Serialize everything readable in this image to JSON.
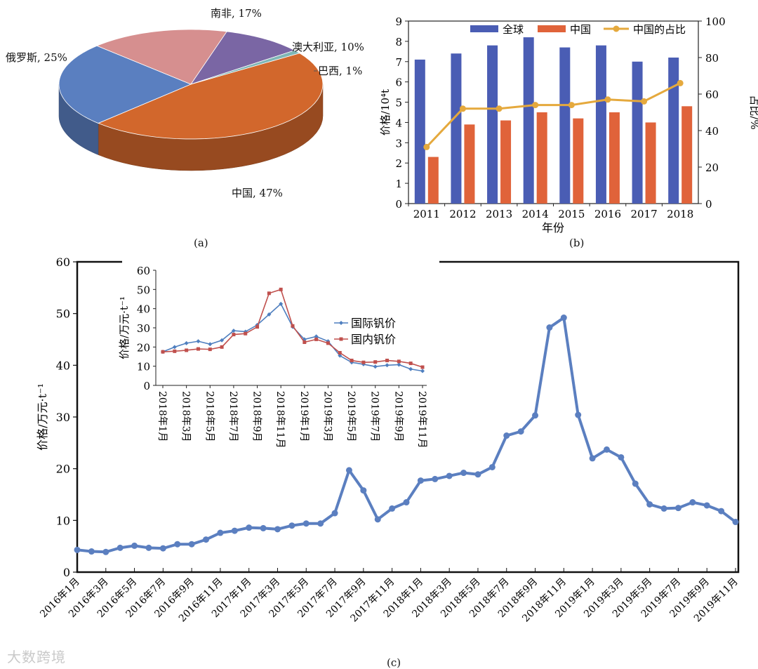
{
  "captions": {
    "a": "(a)",
    "b": "(b)",
    "c": "(c)"
  },
  "watermark": "大数跨境",
  "chart_data": [
    {
      "type": "pie",
      "labels": [
        "中国",
        "俄罗斯",
        "南非",
        "澳大利亚",
        "巴西"
      ],
      "values": [
        47,
        25,
        17,
        10,
        1
      ],
      "slice_labels": [
        "中国, 47%",
        "俄罗斯, 25%",
        "南非, 17%",
        "澳大利亚, 10%",
        "巴西, 1%"
      ],
      "colors": [
        "#d2672c",
        "#5a7fc0",
        "#d68f8f",
        "#7a66a4",
        "#7fb6b6"
      ]
    },
    {
      "type": "bar",
      "categories": [
        "2011",
        "2012",
        "2013",
        "2014",
        "2015",
        "2016",
        "2017",
        "2018"
      ],
      "series": [
        {
          "name": "全球",
          "values": [
            7.1,
            7.4,
            7.8,
            8.2,
            7.7,
            7.8,
            7.0,
            7.2
          ],
          "color": "#4a5db4"
        },
        {
          "name": "中国",
          "values": [
            2.3,
            3.9,
            4.1,
            4.5,
            4.2,
            4.5,
            4.0,
            4.8
          ],
          "color": "#e0633a"
        },
        {
          "name": "中国的占比",
          "axis": "right",
          "type": "line",
          "values": [
            31,
            52,
            52,
            54,
            54,
            57,
            56,
            66
          ],
          "color": "#e5a93d"
        }
      ],
      "xlabel": "年份",
      "ylabel": "价格/10⁴t",
      "y2label": "占比/%",
      "ylim": [
        0,
        9
      ],
      "y2lim": [
        0,
        100
      ],
      "yticks": [
        "0",
        "1",
        "2",
        "3",
        "4",
        "5",
        "6",
        "7",
        "8",
        "9"
      ],
      "y2ticks": [
        "0",
        "20",
        "40",
        "60",
        "80",
        "100"
      ]
    },
    {
      "type": "line",
      "ylabel": "价格/万元·t⁻¹",
      "ylim": [
        0,
        60
      ],
      "yticks": [
        "0",
        "10",
        "20",
        "30",
        "40",
        "50",
        "60"
      ],
      "xtick_labels": [
        "2016年1月",
        "2016年3月",
        "2016年5月",
        "2016年7月",
        "2016年9月",
        "2016年11月",
        "2017年1月",
        "2017年3月",
        "2017年5月",
        "2017年7月",
        "2017年9月",
        "2017年11月",
        "2018年1月",
        "2018年3月",
        "2018年5月",
        "2018年7月",
        "2018年9月",
        "2018年11月",
        "2019年1月",
        "2019年3月",
        "2019年5月",
        "2019年7月",
        "2019年9月",
        "2019年11月"
      ],
      "series": [
        {
          "values": [
            4.3,
            4.0,
            3.9,
            4.7,
            5.1,
            4.7,
            4.6,
            5.4,
            5.4,
            6.3,
            7.6,
            8.0,
            8.6,
            8.5,
            8.3,
            9.0,
            9.4,
            9.4,
            11.4,
            19.7,
            15.8,
            10.2,
            12.3,
            13.5,
            17.7,
            18.0,
            18.6,
            19.2,
            18.9,
            20.3,
            26.4,
            27.2,
            30.3,
            47.3,
            49.2,
            30.4,
            22.0,
            23.7,
            22.2,
            17.1,
            13.1,
            12.3,
            12.4,
            13.5,
            12.9,
            11.8,
            9.7
          ],
          "color": "#5b7fc0"
        }
      ]
    },
    {
      "type": "line",
      "ylabel": "价格/万元·t⁻¹",
      "ylim": [
        0,
        60
      ],
      "yticks": [
        "0",
        "10",
        "20",
        "30",
        "40",
        "50",
        "60"
      ],
      "xtick_labels": [
        "2018年1月",
        "2018年3月",
        "2018年5月",
        "2018年7月",
        "2018年9月",
        "2018年11月",
        "2019年1月",
        "2019年3月",
        "2019年5月",
        "2019年7月",
        "2019年9月",
        "2019年11月"
      ],
      "series": [
        {
          "name": "国际钒价",
          "values": [
            17.5,
            20.0,
            22.0,
            23.0,
            21.5,
            23.5,
            28.5,
            28.0,
            31.5,
            37.0,
            42.5,
            30.5,
            24.0,
            25.5,
            23.0,
            15.5,
            12.0,
            11.0,
            9.8,
            10.5,
            10.8,
            8.5,
            7.5
          ],
          "color": "#4f7fbf"
        },
        {
          "name": "国内钒价",
          "values": [
            17.5,
            17.8,
            18.3,
            19.0,
            18.8,
            20.0,
            26.5,
            27.0,
            30.5,
            48.0,
            50.0,
            31.0,
            22.5,
            24.0,
            22.0,
            17.0,
            13.0,
            12.0,
            12.2,
            13.0,
            12.5,
            11.5,
            9.5
          ],
          "color": "#c0504d"
        }
      ]
    }
  ]
}
